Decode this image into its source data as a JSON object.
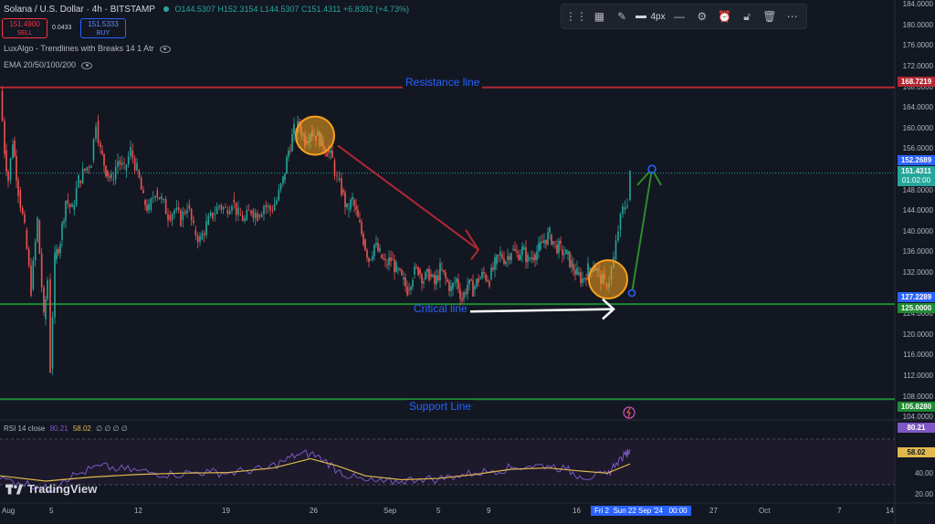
{
  "header": {
    "symbol": "Solana / U.S. Dollar · 4h · BITSTAMP",
    "ohlc_o": "O144.5307",
    "ohlc_h": "H152.3154",
    "ohlc_l": "L144.5307",
    "ohlc_c": "C151.4311",
    "change": "+6.8392 (+4.73%)",
    "sell_price": "151.4900",
    "sell_label": "SELL",
    "spread": "0.0433",
    "buy_price": "151.5333",
    "buy_label": "BUY",
    "indicator1": "LuxAlgo - Trendlines with Breaks 14 1 Atr",
    "indicator2": "EMA 20/50/100/200"
  },
  "toolbar": {
    "width_label": "4px",
    "icons": [
      "drag-handle-icon",
      "templates-icon",
      "pencil-icon",
      "line-width-icon",
      "line-style-icon",
      "settings-icon",
      "alert-add-icon",
      "lock-icon",
      "trash-icon",
      "more-icon"
    ]
  },
  "drawings": {
    "resistance_label": "Resistance line",
    "critical_label": "Critical line",
    "support_label": "Support Line"
  },
  "price_axis": {
    "ticks": [
      "184.0000",
      "180.0000",
      "176.0000",
      "172.0000",
      "168.0000",
      "164.0000",
      "160.0000",
      "156.0000",
      "148.0000",
      "144.0000",
      "140.0000",
      "136.0000",
      "132.0000",
      "124.0000",
      "120.0000",
      "116.0000",
      "112.0000",
      "108.0000",
      "104.0000"
    ],
    "tags": {
      "resistance": "168.7219",
      "target": "152.2689",
      "current": "151.4311",
      "countdown": "01:02:00",
      "entry": "127.2289",
      "critical": "125.0000",
      "support": "105.8280"
    }
  },
  "rsi": {
    "label": "RSI 14 close",
    "value1": "80.21",
    "value2": "58.02",
    "extras": "∅ ∅ ∅ ∅",
    "axis_ticks": [
      "40.00",
      "20.00"
    ],
    "tag_rsi": "80.21",
    "tag_ma": "58.02"
  },
  "time_axis": {
    "labels": [
      "Aug",
      "5",
      "12",
      "19",
      "26",
      "Sep",
      "5",
      "9",
      "16",
      "27",
      "Oct",
      "7",
      "14"
    ],
    "crosshair_date": "Fri 2  Sun 22 Sep '24   00:00"
  },
  "branding": {
    "logo_text": "TradingView"
  },
  "colors": {
    "background": "#131722",
    "up": "#26a69a",
    "down": "#ef5350",
    "resistance": "#b22833",
    "support": "#1e8a32",
    "label_blue": "#2962ff",
    "rsi_line": "#7e57c2",
    "rsi_ma": "#e0b84c",
    "circle": "#f7a21b"
  },
  "chart_data": {
    "type": "candlestick",
    "title": "Solana / U.S. Dollar · 4h · BITSTAMP",
    "xlabel": "",
    "ylabel": "",
    "ylim": [
      102,
      186
    ],
    "resistance_price": 168.7219,
    "critical_price": 125.0,
    "support_price": 105.828,
    "current_price": 151.4311,
    "target_price": 152.2689,
    "entry_price": 127.2289,
    "close_path": [
      [
        0,
        168
      ],
      [
        5,
        156
      ],
      [
        9,
        150
      ],
      [
        14,
        158
      ],
      [
        20,
        148
      ],
      [
        27,
        140
      ],
      [
        34,
        128
      ],
      [
        41,
        142
      ],
      [
        48,
        122
      ],
      [
        52,
        130
      ],
      [
        55,
        112
      ],
      [
        60,
        134
      ],
      [
        66,
        138
      ],
      [
        72,
        146
      ],
      [
        79,
        144
      ],
      [
        86,
        150
      ],
      [
        93,
        152
      ],
      [
        100,
        154
      ],
      [
        105,
        162
      ],
      [
        110,
        156
      ],
      [
        116,
        152
      ],
      [
        122,
        150
      ],
      [
        129,
        154
      ],
      [
        136,
        152
      ],
      [
        143,
        156
      ],
      [
        150,
        152
      ],
      [
        157,
        146
      ],
      [
        163,
        144
      ],
      [
        170,
        148
      ],
      [
        177,
        146
      ],
      [
        184,
        143
      ],
      [
        191,
        144
      ],
      [
        198,
        142
      ],
      [
        205,
        145
      ],
      [
        212,
        140
      ],
      [
        219,
        138
      ],
      [
        226,
        141
      ],
      [
        233,
        143
      ],
      [
        240,
        145
      ],
      [
        247,
        144
      ],
      [
        254,
        146
      ],
      [
        261,
        143
      ],
      [
        268,
        142
      ],
      [
        275,
        144
      ],
      [
        282,
        143
      ],
      [
        289,
        145
      ],
      [
        296,
        144
      ],
      [
        303,
        146
      ],
      [
        310,
        150
      ],
      [
        316,
        156
      ],
      [
        322,
        160
      ],
      [
        328,
        161
      ],
      [
        334,
        158
      ],
      [
        340,
        160
      ],
      [
        346,
        159
      ],
      [
        352,
        158
      ],
      [
        358,
        156
      ],
      [
        364,
        154
      ],
      [
        369,
        150
      ],
      [
        374,
        148
      ],
      [
        380,
        144
      ],
      [
        386,
        146
      ],
      [
        392,
        142
      ],
      [
        398,
        138
      ],
      [
        404,
        134
      ],
      [
        410,
        137
      ],
      [
        416,
        135
      ],
      [
        422,
        133
      ],
      [
        428,
        134
      ],
      [
        434,
        132
      ],
      [
        440,
        130
      ],
      [
        446,
        128
      ],
      [
        452,
        131
      ],
      [
        458,
        132
      ],
      [
        464,
        130
      ],
      [
        470,
        131
      ],
      [
        476,
        129
      ],
      [
        482,
        132
      ],
      [
        488,
        130
      ],
      [
        494,
        128
      ],
      [
        500,
        130
      ],
      [
        506,
        126
      ],
      [
        512,
        129
      ],
      [
        518,
        128
      ],
      [
        524,
        130
      ],
      [
        530,
        131
      ],
      [
        536,
        130
      ],
      [
        542,
        133
      ],
      [
        548,
        135
      ],
      [
        554,
        134
      ],
      [
        560,
        136
      ],
      [
        566,
        135
      ],
      [
        572,
        136
      ],
      [
        578,
        134
      ],
      [
        584,
        135
      ],
      [
        590,
        136
      ],
      [
        596,
        138
      ],
      [
        602,
        139
      ],
      [
        608,
        137
      ],
      [
        614,
        136
      ],
      [
        620,
        135
      ],
      [
        626,
        133
      ],
      [
        632,
        131
      ],
      [
        638,
        130
      ],
      [
        644,
        132
      ],
      [
        650,
        133
      ],
      [
        656,
        131
      ],
      [
        662,
        129
      ],
      [
        667,
        130
      ],
      [
        672,
        134
      ],
      [
        677,
        140
      ],
      [
        682,
        144
      ],
      [
        687,
        146
      ],
      [
        690,
        152
      ]
    ],
    "rsi": {
      "ylim": [
        0,
        100
      ],
      "rsi_path": [
        [
          0,
          35
        ],
        [
          20,
          30
        ],
        [
          40,
          25
        ],
        [
          55,
          18
        ],
        [
          70,
          35
        ],
        [
          90,
          45
        ],
        [
          110,
          55
        ],
        [
          130,
          50
        ],
        [
          150,
          48
        ],
        [
          170,
          44
        ],
        [
          190,
          42
        ],
        [
          210,
          45
        ],
        [
          230,
          46
        ],
        [
          250,
          44
        ],
        [
          270,
          48
        ],
        [
          290,
          50
        ],
        [
          310,
          62
        ],
        [
          325,
          72
        ],
        [
          340,
          74
        ],
        [
          355,
          64
        ],
        [
          370,
          48
        ],
        [
          385,
          38
        ],
        [
          400,
          32
        ],
        [
          420,
          30
        ],
        [
          440,
          32
        ],
        [
          460,
          36
        ],
        [
          480,
          35
        ],
        [
          500,
          40
        ],
        [
          520,
          44
        ],
        [
          540,
          48
        ],
        [
          560,
          52
        ],
        [
          580,
          55
        ],
        [
          600,
          56
        ],
        [
          620,
          50
        ],
        [
          635,
          40
        ],
        [
          650,
          38
        ],
        [
          665,
          42
        ],
        [
          675,
          60
        ],
        [
          685,
          72
        ],
        [
          690,
          80
        ]
      ],
      "ma_path": [
        [
          0,
          40
        ],
        [
          50,
          32
        ],
        [
          100,
          38
        ],
        [
          150,
          42
        ],
        [
          200,
          44
        ],
        [
          250,
          45
        ],
        [
          300,
          52
        ],
        [
          340,
          66
        ],
        [
          370,
          55
        ],
        [
          400,
          40
        ],
        [
          440,
          34
        ],
        [
          480,
          36
        ],
        [
          520,
          42
        ],
        [
          560,
          50
        ],
        [
          600,
          52
        ],
        [
          630,
          48
        ],
        [
          665,
          44
        ],
        [
          690,
          58
        ]
      ]
    }
  }
}
